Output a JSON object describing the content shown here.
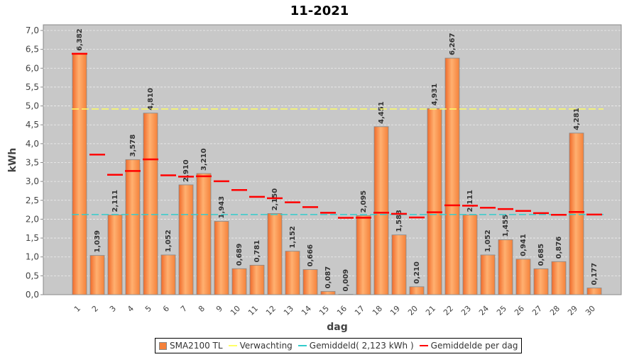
{
  "chart_data": {
    "type": "bar",
    "title": "11-2021",
    "xlabel": "dag",
    "ylabel": "kWh",
    "ylim": [
      0,
      7
    ],
    "yticks": [
      "0,0",
      "0,5",
      "1,0",
      "1,5",
      "2,0",
      "2,5",
      "3,0",
      "3,5",
      "4,0",
      "4,5",
      "5,0",
      "5,5",
      "6,0",
      "6,5",
      "7,0"
    ],
    "grid": true,
    "legend_position": "bottom",
    "categories": [
      "1",
      "2",
      "3",
      "4",
      "5",
      "6",
      "7",
      "8",
      "9",
      "10",
      "11",
      "12",
      "13",
      "14",
      "15",
      "16",
      "17",
      "18",
      "19",
      "20",
      "21",
      "22",
      "23",
      "24",
      "25",
      "26",
      "27",
      "28",
      "29",
      "30"
    ],
    "series": [
      {
        "name": "SMA2100 TL",
        "type": "bar",
        "color": "#f5813a",
        "values": [
          6.382,
          1.039,
          2.111,
          3.578,
          4.81,
          1.052,
          2.91,
          3.21,
          1.943,
          0.689,
          0.781,
          2.15,
          1.152,
          0.666,
          0.087,
          0.009,
          2.095,
          4.451,
          1.583,
          0.21,
          4.931,
          6.267,
          2.111,
          1.052,
          1.455,
          0.941,
          0.685,
          0.876,
          4.281,
          0.177
        ],
        "labels": [
          "6,382",
          "1,039",
          "2,111",
          "3,578",
          "4,810",
          "1,052",
          "2,910",
          "3,210",
          "1,943",
          "0,689",
          "0,781",
          "2,150",
          "1,152",
          "0,666",
          "0,087",
          "0,009",
          "2,095",
          "4,451",
          "1,583",
          "0,210",
          "4,931",
          "6,267",
          "2,111",
          "1,052",
          "1,455",
          "0,941",
          "0,685",
          "0,876",
          "4,281",
          "0,177"
        ]
      },
      {
        "name": "Verwachting",
        "type": "line",
        "color": "#ffff66",
        "value": 4.92
      },
      {
        "name": "Gemiddeld( 2,123 kWh )",
        "type": "line",
        "color": "#33cccc",
        "value": 2.123
      },
      {
        "name": "Gemiddelde per dag",
        "type": "marker",
        "color": "#ff0000",
        "values": [
          6.382,
          3.711,
          3.177,
          3.278,
          3.584,
          3.162,
          3.126,
          3.137,
          3.004,
          2.772,
          2.591,
          2.555,
          2.447,
          2.32,
          2.171,
          2.036,
          2.039,
          2.173,
          2.142,
          2.045,
          2.183,
          2.368,
          2.357,
          2.303,
          2.269,
          2.218,
          2.161,
          2.115,
          2.19,
          2.123
        ]
      }
    ]
  }
}
